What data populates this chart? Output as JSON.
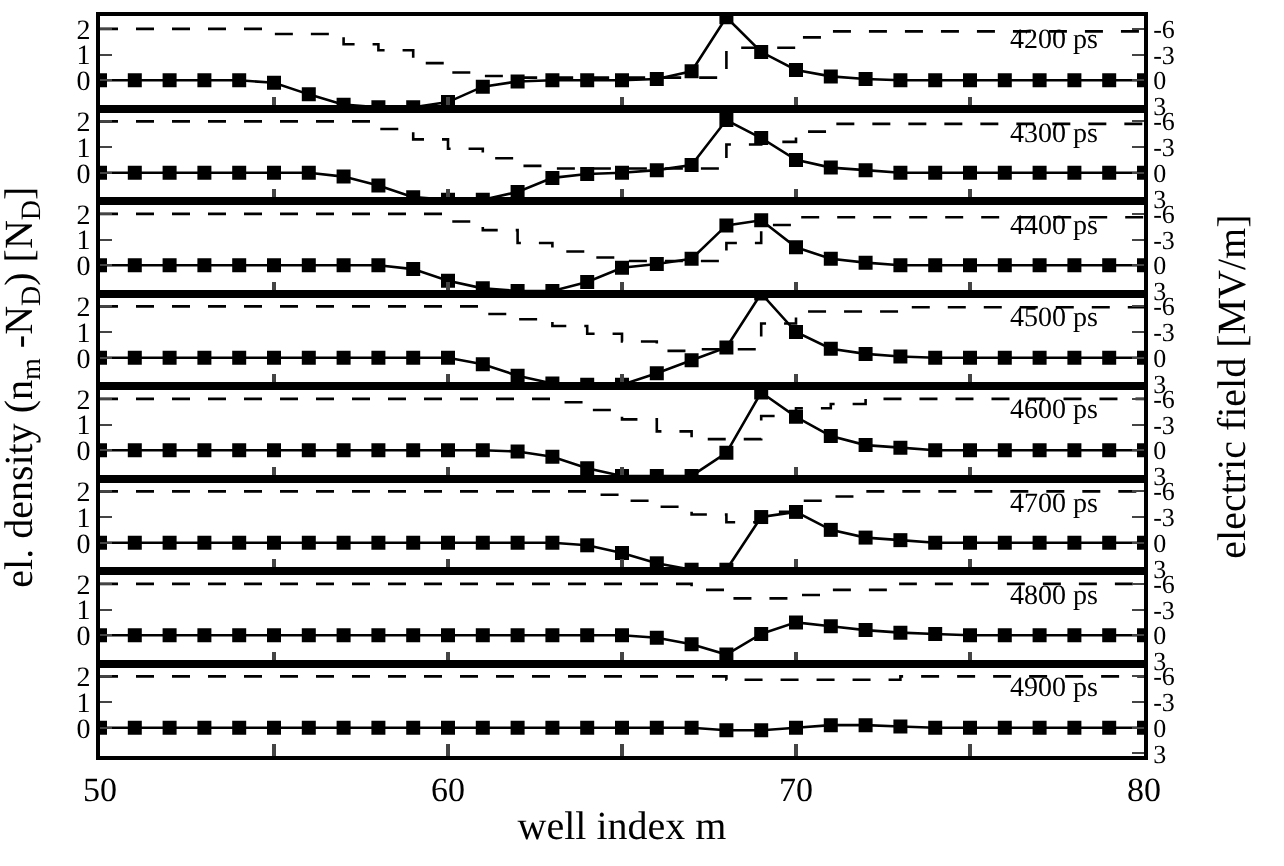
{
  "chart_data": [
    {
      "type": "line",
      "ylabel": "el. density (n$_{m}$ -N$_{D}$) [N$_{D}$]",
      "y2label": "electric field [MV/m]",
      "annotations": [
        "4200 ps"
      ],
      "x": [
        50,
        51,
        52,
        53,
        54,
        55,
        56,
        57,
        58,
        59,
        60,
        61,
        62,
        63,
        64,
        65,
        66,
        67,
        68,
        69,
        70,
        71,
        72,
        73,
        74,
        75,
        76,
        77,
        78,
        79,
        80
      ],
      "xlim": [
        50,
        80
      ],
      "xticks": [
        50,
        {
          "value": 55,
          "label": null
        },
        60,
        {
          "value": 65,
          "label": null
        },
        70,
        {
          "value": 75,
          "label": null
        },
        80
      ],
      "ylim": [
        -1.1,
        2.5
      ],
      "yticks": [
        0,
        1,
        2
      ],
      "y2lim": [
        3.3,
        -7.5
      ],
      "y2ticks": [
        -6,
        -3,
        0,
        3
      ],
      "tick_labels": "y",
      "series": [
        {
          "color": "#000000",
          "marker": "square",
          "line_style": "solid",
          "values": [
            0,
            0,
            0,
            0,
            0,
            -0.1,
            -0.55,
            -0.95,
            -1.05,
            -1.05,
            -0.85,
            -0.25,
            -0.05,
            0,
            0,
            0,
            0.05,
            0.35,
            2.45,
            1.1,
            0.4,
            0.15,
            0.05,
            0,
            0,
            0,
            0,
            0,
            0,
            0,
            0
          ]
        },
        {
          "type": "step",
          "axis": "y2",
          "color": "#000000",
          "marker": "none",
          "line_style": "dashed",
          "values": [
            -6,
            -6,
            -6,
            -6,
            -6,
            -5.4,
            -5.4,
            -4.2,
            -3.5,
            -2.0,
            -0.9,
            -0.5,
            -0.3,
            -0.3,
            -0.3,
            -0.3,
            -0.3,
            -0.3,
            -3.8,
            -3.8,
            -5.0,
            -5.7,
            -5.7,
            -5.7,
            -5.7,
            -5.7,
            -5.7,
            -5.7,
            -5.7,
            -5.7,
            -5.8
          ]
        }
      ]
    },
    {
      "type": "line",
      "annotations": [
        "4300 ps"
      ],
      "x": [
        50,
        51,
        52,
        53,
        54,
        55,
        56,
        57,
        58,
        59,
        60,
        61,
        62,
        63,
        64,
        65,
        66,
        67,
        68,
        69,
        70,
        71,
        72,
        73,
        74,
        75,
        76,
        77,
        78,
        79,
        80
      ],
      "xlim": [
        50,
        80
      ],
      "xticks": [
        50,
        {
          "value": 55,
          "label": null
        },
        60,
        {
          "value": 65,
          "label": null
        },
        70,
        {
          "value": 75,
          "label": null
        },
        80
      ],
      "ylim": [
        -1.1,
        2.5
      ],
      "yticks": [
        0,
        1,
        2
      ],
      "y2lim": [
        3.3,
        -7.5
      ],
      "y2ticks": [
        -6,
        -3,
        0,
        3
      ],
      "tick_labels": "y",
      "series": [
        {
          "color": "#000000",
          "marker": "square",
          "line_style": "solid",
          "values": [
            0,
            0,
            0,
            0,
            0,
            0,
            0,
            -0.15,
            -0.5,
            -0.95,
            -1.05,
            -1.05,
            -0.75,
            -0.2,
            -0.05,
            0,
            0.1,
            0.3,
            2.05,
            1.35,
            0.5,
            0.2,
            0.1,
            0,
            0,
            0,
            0,
            0,
            0,
            0,
            0
          ]
        },
        {
          "type": "step",
          "axis": "y2",
          "color": "#000000",
          "marker": "none",
          "line_style": "dashed",
          "values": [
            -6,
            -6,
            -6,
            -6,
            -6,
            -6,
            -6,
            -6,
            -5.1,
            -3.9,
            -2.8,
            -1.7,
            -0.8,
            -0.5,
            -0.5,
            -0.5,
            -0.5,
            -0.5,
            -3.3,
            -3.6,
            -4.8,
            -5.7,
            -5.7,
            -5.7,
            -5.7,
            -5.7,
            -5.7,
            -5.7,
            -5.7,
            -5.7,
            -5.7
          ]
        }
      ]
    },
    {
      "type": "line",
      "annotations": [
        "4400 ps"
      ],
      "x": [
        50,
        51,
        52,
        53,
        54,
        55,
        56,
        57,
        58,
        59,
        60,
        61,
        62,
        63,
        64,
        65,
        66,
        67,
        68,
        69,
        70,
        71,
        72,
        73,
        74,
        75,
        76,
        77,
        78,
        79,
        80
      ],
      "xlim": [
        50,
        80
      ],
      "xticks": [
        50,
        {
          "value": 55,
          "label": null
        },
        60,
        {
          "value": 65,
          "label": null
        },
        70,
        {
          "value": 75,
          "label": null
        },
        80
      ],
      "ylim": [
        -1.1,
        2.5
      ],
      "yticks": [
        0,
        1,
        2
      ],
      "y2lim": [
        3.3,
        -7.5
      ],
      "y2ticks": [
        -6,
        -3,
        0,
        3
      ],
      "tick_labels": "y",
      "series": [
        {
          "color": "#000000",
          "marker": "square",
          "line_style": "solid",
          "values": [
            0,
            0,
            0,
            0,
            0,
            0,
            0,
            0,
            0,
            -0.15,
            -0.6,
            -0.9,
            -1.0,
            -1.0,
            -0.65,
            -0.1,
            0.05,
            0.25,
            1.55,
            1.75,
            0.7,
            0.25,
            0.1,
            0,
            0,
            0,
            0,
            0,
            0,
            0,
            0
          ]
        },
        {
          "type": "step",
          "axis": "y2",
          "color": "#000000",
          "marker": "none",
          "line_style": "dashed",
          "values": [
            -6,
            -6,
            -6,
            -6,
            -6,
            -6,
            -6,
            -6,
            -6,
            -6,
            -5.1,
            -4.1,
            -2.6,
            -1.6,
            -0.9,
            -0.5,
            -0.5,
            -0.5,
            -2.6,
            -4.7,
            -5.6,
            -5.6,
            -5.6,
            -5.6,
            -5.6,
            -5.6,
            -5.6,
            -5.6,
            -5.6,
            -5.6,
            -5.6
          ]
        }
      ]
    },
    {
      "type": "line",
      "annotations": [
        "4500 ps"
      ],
      "x": [
        50,
        51,
        52,
        53,
        54,
        55,
        56,
        57,
        58,
        59,
        60,
        61,
        62,
        63,
        64,
        65,
        66,
        67,
        68,
        69,
        70,
        71,
        72,
        73,
        74,
        75,
        76,
        77,
        78,
        79,
        80
      ],
      "xlim": [
        50,
        80
      ],
      "xticks": [
        50,
        {
          "value": 55,
          "label": null
        },
        60,
        {
          "value": 65,
          "label": null
        },
        70,
        {
          "value": 75,
          "label": null
        },
        80
      ],
      "ylim": [
        -1.1,
        2.5
      ],
      "yticks": [
        0,
        1,
        2
      ],
      "y2lim": [
        3.3,
        -7.5
      ],
      "y2ticks": [
        -6,
        -3,
        0,
        3
      ],
      "tick_labels": "y",
      "series": [
        {
          "color": "#000000",
          "marker": "square",
          "line_style": "solid",
          "values": [
            0,
            0,
            0,
            0,
            0,
            0,
            0,
            0,
            0,
            0,
            0,
            -0.25,
            -0.7,
            -1.0,
            -1.05,
            -1.05,
            -0.6,
            -0.1,
            0.4,
            2.5,
            1.0,
            0.35,
            0.15,
            0.05,
            0,
            0,
            0,
            0,
            0,
            0,
            0
          ]
        },
        {
          "type": "step",
          "axis": "y2",
          "color": "#000000",
          "marker": "none",
          "line_style": "dashed",
          "values": [
            -6,
            -6,
            -6,
            -6,
            -6,
            -6,
            -6,
            -6,
            -6,
            -6,
            -6,
            -5.1,
            -4.5,
            -3.7,
            -2.8,
            -1.9,
            -0.8,
            -1.0,
            -1.0,
            -4.0,
            -5.4,
            -5.4,
            -5.4,
            -5.9,
            -5.9,
            -5.9,
            -5.9,
            -5.9,
            -5.9,
            -5.9,
            -5.9
          ]
        }
      ]
    },
    {
      "type": "line",
      "annotations": [
        "4600 ps"
      ],
      "x": [
        50,
        51,
        52,
        53,
        54,
        55,
        56,
        57,
        58,
        59,
        60,
        61,
        62,
        63,
        64,
        65,
        66,
        67,
        68,
        69,
        70,
        71,
        72,
        73,
        74,
        75,
        76,
        77,
        78,
        79,
        80
      ],
      "xlim": [
        50,
        80
      ],
      "xticks": [
        50,
        {
          "value": 55,
          "label": null
        },
        60,
        {
          "value": 65,
          "label": null
        },
        70,
        {
          "value": 75,
          "label": null
        },
        80
      ],
      "ylim": [
        -1.1,
        2.5
      ],
      "yticks": [
        0,
        1,
        2
      ],
      "y2lim": [
        3.3,
        -7.5
      ],
      "y2ticks": [
        -6,
        -3,
        0,
        3
      ],
      "tick_labels": "y",
      "series": [
        {
          "color": "#000000",
          "marker": "square",
          "line_style": "solid",
          "values": [
            0,
            0,
            0,
            0,
            0,
            0,
            0,
            0,
            0,
            0,
            0,
            0,
            -0.05,
            -0.25,
            -0.7,
            -1.0,
            -1.0,
            -1.0,
            -0.1,
            2.25,
            1.3,
            0.55,
            0.2,
            0.1,
            0,
            0,
            0,
            0,
            0,
            0,
            0
          ]
        },
        {
          "type": "step",
          "axis": "y2",
          "color": "#000000",
          "marker": "none",
          "line_style": "dashed",
          "values": [
            -6,
            -6,
            -6,
            -6,
            -6,
            -6,
            -6,
            -6,
            -6,
            -6,
            -6,
            -6,
            -6,
            -5.6,
            -4.7,
            -3.6,
            -2.2,
            -1.3,
            -1.3,
            -4.0,
            -4.9,
            -5.4,
            -6,
            -6,
            -6,
            -6,
            -6,
            -6,
            -6,
            -6,
            -6
          ]
        }
      ]
    },
    {
      "type": "line",
      "annotations": [
        "4700 ps"
      ],
      "x": [
        50,
        51,
        52,
        53,
        54,
        55,
        56,
        57,
        58,
        59,
        60,
        61,
        62,
        63,
        64,
        65,
        66,
        67,
        68,
        69,
        70,
        71,
        72,
        73,
        74,
        75,
        76,
        77,
        78,
        79,
        80
      ],
      "xlim": [
        50,
        80
      ],
      "xticks": [
        50,
        {
          "value": 55,
          "label": null
        },
        60,
        {
          "value": 65,
          "label": null
        },
        70,
        {
          "value": 75,
          "label": null
        },
        80
      ],
      "ylim": [
        -1.1,
        2.5
      ],
      "yticks": [
        0,
        1,
        2
      ],
      "y2lim": [
        3.3,
        -7.5
      ],
      "y2ticks": [
        -6,
        -3,
        0,
        3
      ],
      "tick_labels": "y",
      "series": [
        {
          "color": "#000000",
          "marker": "square",
          "line_style": "solid",
          "values": [
            0,
            0,
            0,
            0,
            0,
            0,
            0,
            0,
            0,
            0,
            0,
            0,
            0,
            0,
            -0.1,
            -0.4,
            -0.8,
            -1.05,
            -1.05,
            1.0,
            1.2,
            0.5,
            0.2,
            0.1,
            0,
            0,
            0,
            0,
            0,
            0,
            0
          ]
        },
        {
          "type": "step",
          "axis": "y2",
          "color": "#000000",
          "marker": "none",
          "line_style": "dashed",
          "values": [
            -6,
            -6,
            -6,
            -6,
            -6,
            -6,
            -6,
            -6,
            -6,
            -6,
            -6,
            -6,
            -6,
            -6,
            -5.6,
            -4.9,
            -4.2,
            -3.3,
            -2.4,
            -3.6,
            -4.9,
            -5.4,
            -6,
            -6,
            -6,
            -6,
            -6,
            -6,
            -6,
            -6,
            -6
          ]
        }
      ]
    },
    {
      "type": "line",
      "annotations": [
        "4800 ps"
      ],
      "x": [
        50,
        51,
        52,
        53,
        54,
        55,
        56,
        57,
        58,
        59,
        60,
        61,
        62,
        63,
        64,
        65,
        66,
        67,
        68,
        69,
        70,
        71,
        72,
        73,
        74,
        75,
        76,
        77,
        78,
        79,
        80
      ],
      "xlim": [
        50,
        80
      ],
      "xticks": [
        50,
        {
          "value": 55,
          "label": null
        },
        60,
        {
          "value": 65,
          "label": null
        },
        70,
        {
          "value": 75,
          "label": null
        },
        80
      ],
      "ylim": [
        -1.1,
        2.5
      ],
      "yticks": [
        0,
        1,
        2
      ],
      "y2lim": [
        3.3,
        -7.5
      ],
      "y2ticks": [
        -6,
        -3,
        0,
        3
      ],
      "tick_labels": "y",
      "series": [
        {
          "color": "#000000",
          "marker": "square",
          "line_style": "solid",
          "values": [
            0,
            0,
            0,
            0,
            0,
            0,
            0,
            0,
            0,
            0,
            0,
            0,
            0,
            0,
            0,
            0,
            -0.1,
            -0.35,
            -0.75,
            0.05,
            0.5,
            0.35,
            0.2,
            0.1,
            0.05,
            0,
            0,
            0,
            0,
            0,
            0
          ]
        },
        {
          "type": "step",
          "axis": "y2",
          "color": "#000000",
          "marker": "none",
          "line_style": "dashed",
          "values": [
            -6,
            -6,
            -6,
            -6,
            -6,
            -6,
            -6,
            -6,
            -6,
            -6,
            -6,
            -6,
            -6,
            -6,
            -6,
            -6,
            -6,
            -5.3,
            -4.3,
            -4.3,
            -4.7,
            -5.3,
            -5.3,
            -6,
            -6,
            -6,
            -6,
            -6,
            -6,
            -6,
            -6
          ]
        }
      ]
    },
    {
      "type": "line",
      "xlabel": "well index m",
      "annotations": [
        "4900 ps"
      ],
      "x": [
        50,
        51,
        52,
        53,
        54,
        55,
        56,
        57,
        58,
        59,
        60,
        61,
        62,
        63,
        64,
        65,
        66,
        67,
        68,
        69,
        70,
        71,
        72,
        73,
        74,
        75,
        76,
        77,
        78,
        79,
        80
      ],
      "xlim": [
        50,
        80
      ],
      "xticks": [
        50,
        {
          "value": 55,
          "label": null
        },
        60,
        {
          "value": 65,
          "label": null
        },
        70,
        {
          "value": 75,
          "label": null
        },
        80
      ],
      "ylim": [
        -1.1,
        2.5
      ],
      "yticks": [
        0,
        1,
        2
      ],
      "y2lim": [
        3.3,
        -7.5
      ],
      "y2ticks": [
        -6,
        -3,
        0,
        3
      ],
      "series": [
        {
          "color": "#000000",
          "marker": "square",
          "line_style": "solid",
          "values": [
            0,
            0,
            0,
            0,
            0,
            0,
            0,
            0,
            0,
            0,
            0,
            0,
            0,
            0,
            0,
            0,
            0,
            0,
            -0.1,
            -0.1,
            0,
            0.1,
            0.1,
            0.05,
            0,
            0,
            0,
            0,
            0,
            0,
            0
          ]
        },
        {
          "type": "step",
          "axis": "y2",
          "color": "#000000",
          "marker": "none",
          "line_style": "dashed",
          "values": [
            -6,
            -6,
            -6,
            -6,
            -6,
            -6,
            -6,
            -6,
            -6,
            -6,
            -6,
            -6,
            -6,
            -6,
            -6,
            -6,
            -6,
            -6,
            -5.6,
            -5.6,
            -5.6,
            -5.6,
            -5.6,
            -6,
            -6,
            -6,
            -6,
            -6,
            -6,
            -6,
            -6
          ]
        }
      ]
    }
  ]
}
